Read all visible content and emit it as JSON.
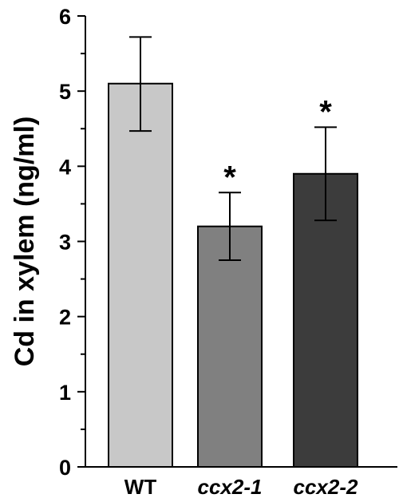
{
  "chart_data": {
    "type": "bar",
    "categories": [
      "WT",
      "ccx2-1",
      "ccx2-2"
    ],
    "category_italic": [
      false,
      true,
      true
    ],
    "values": [
      5.1,
      3.2,
      3.9
    ],
    "error_upper": [
      5.72,
      3.65,
      4.52
    ],
    "error_lower": [
      4.47,
      2.75,
      3.28
    ],
    "significance": [
      "",
      "*",
      "*"
    ],
    "bar_colors": [
      "#c8c8c8",
      "#808080",
      "#3c3c3c"
    ],
    "ylabel": "Cd in xylem (ng/ml)",
    "xlabel": "",
    "title": "",
    "ylim": [
      0,
      6
    ],
    "yticks": [
      0,
      1,
      2,
      3,
      4,
      5,
      6
    ],
    "grid": false,
    "legend": "none"
  }
}
